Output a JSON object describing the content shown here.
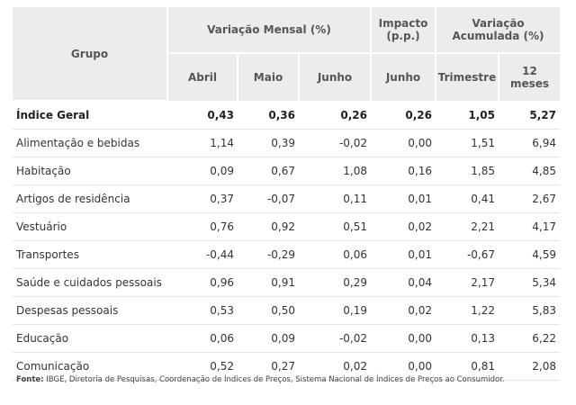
{
  "header": {
    "grupo": "Grupo",
    "variacao_mensal": "Variação Mensal (%)",
    "impacto": "Impacto\n(p.p.)",
    "variacao_acumulada": "Variação\nAcumulada (%)",
    "subcols": [
      "Abril",
      "Maio",
      "Junho",
      "Junho",
      "Trimestre",
      "12\nmeses"
    ]
  },
  "rows": [
    {
      "name": "Índice Geral",
      "values": [
        "0,43",
        "0,36",
        "0,26",
        "0,26",
        "1,05",
        "5,27"
      ]
    },
    {
      "name": "Alimentação e bebidas",
      "values": [
        "1,14",
        "0,39",
        "-0,02",
        "0,00",
        "1,51",
        "6,94"
      ]
    },
    {
      "name": "Habitação",
      "values": [
        "0,09",
        "0,67",
        "1,08",
        "0,16",
        "1,85",
        "4,85"
      ]
    },
    {
      "name": "Artigos de residência",
      "values": [
        "0,37",
        "-0,07",
        "0,11",
        "0,01",
        "0,41",
        "2,67"
      ]
    },
    {
      "name": "Vestuário",
      "values": [
        "0,76",
        "0,92",
        "0,51",
        "0,02",
        "2,21",
        "4,17"
      ]
    },
    {
      "name": "Transportes",
      "values": [
        "-0,44",
        "-0,29",
        "0,06",
        "0,01",
        "-0,67",
        "4,59"
      ]
    },
    {
      "name": "Saúde e cuidados pessoais",
      "values": [
        "0,96",
        "0,91",
        "0,29",
        "0,04",
        "2,17",
        "5,34"
      ]
    },
    {
      "name": "Despesas pessoais",
      "values": [
        "0,53",
        "0,50",
        "0,19",
        "0,02",
        "1,22",
        "5,83"
      ]
    },
    {
      "name": "Educação",
      "values": [
        "0,06",
        "0,09",
        "-0,02",
        "0,00",
        "0,13",
        "6,22"
      ]
    },
    {
      "name": "Comunicação",
      "values": [
        "0,52",
        "0,27",
        "0,02",
        "0,00",
        "0,81",
        "2,08"
      ]
    }
  ],
  "source": {
    "label": "Fonte:",
    "text": " IBGE, Diretoria de Pesquisas, Coordenação de Índices de Preços, Sistema  Nacional de Índices de Preços ao Consumidor."
  },
  "colors": {
    "header_bg": "#ececec",
    "row_border": "#e3e3e3"
  }
}
